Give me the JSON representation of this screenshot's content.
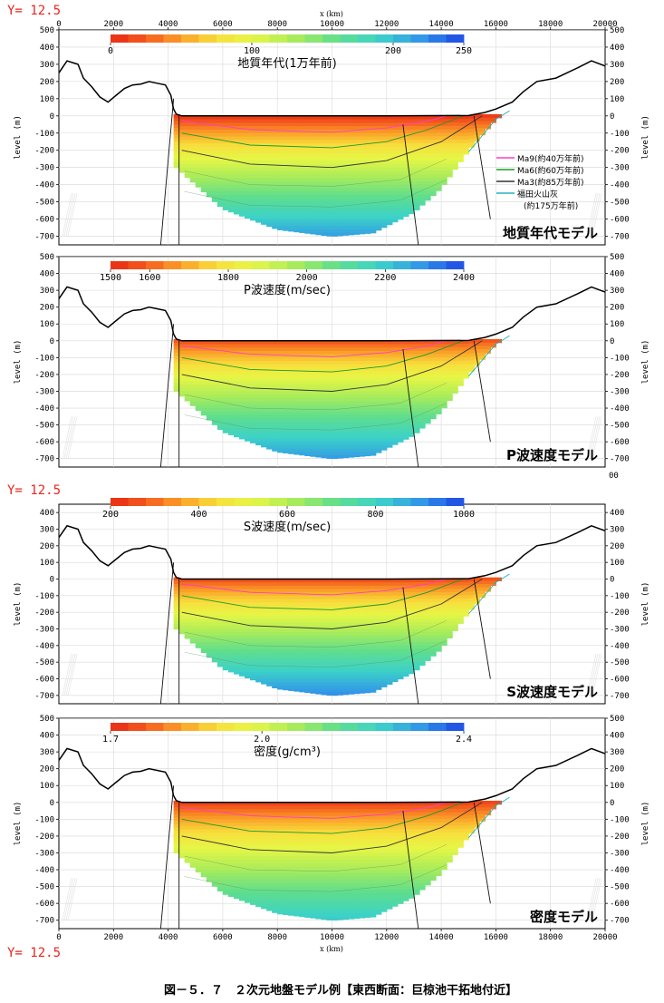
{
  "page": {
    "y_markers": [
      "Y= 12.5",
      "Y= 12.5",
      "Y= 12.5"
    ],
    "x_axis_label": "x (km)",
    "extra_tick": "00",
    "caption": "図－５．７　２次元地盤モデル例【東西断面：巨椋池干拓地付近】"
  },
  "legend": {
    "entries": [
      {
        "name": "Ma9(約40万年前)",
        "color": "#ff3cc8"
      },
      {
        "name": "Ma6(約60万年前)",
        "color": "#1a9a2a"
      },
      {
        "name": "Ma3(約85万年前)",
        "color": "#333333"
      },
      {
        "name": "福田火山灰",
        "color": "#22b0c0"
      },
      {
        "name": "(約175万年前)",
        "color": ""
      }
    ]
  },
  "chart_data": [
    {
      "type": "heatmap",
      "title": "地質年代モデル",
      "colorbar_label": "地質年代(1万年前)",
      "colorbar_ticks": [
        "0",
        "100",
        "200",
        "250"
      ],
      "colorbar_range": [
        0,
        250
      ],
      "ylabel": "level (m)",
      "xlabel": "",
      "xlim": [
        0,
        20000
      ],
      "ylim": [
        -750,
        500
      ],
      "x_ticks": [
        "0",
        "2000",
        "4000",
        "6000",
        "8000",
        "10000",
        "12000",
        "14000",
        "16000",
        "18000",
        "20000"
      ],
      "y_ticks": [
        "500",
        "400",
        "300",
        "200",
        "100",
        "0",
        "-100",
        "-200",
        "-300",
        "-400",
        "-500",
        "-600",
        "-700"
      ],
      "top_value": 0,
      "bottom_value": 230,
      "grid": true
    },
    {
      "type": "heatmap",
      "title": "P波速度モデル",
      "colorbar_label": "P波速度(m/sec)",
      "colorbar_ticks": [
        "1500",
        "1600",
        "1800",
        "2000",
        "2200",
        "2400"
      ],
      "colorbar_range": [
        1500,
        2400
      ],
      "ylabel": "level (m)",
      "xlabel": "",
      "xlim": [
        0,
        20000
      ],
      "ylim": [
        -750,
        500
      ],
      "x_ticks": [],
      "y_ticks": [
        "500",
        "400",
        "300",
        "200",
        "100",
        "0",
        "-100",
        "-200",
        "-300",
        "-400",
        "-500",
        "-600",
        "-700"
      ],
      "top_value": 1550,
      "bottom_value": 2330,
      "grid": true
    },
    {
      "type": "heatmap",
      "title": "S波速度モデル",
      "colorbar_label": "S波速度(m/sec)",
      "colorbar_ticks": [
        "200",
        "400",
        "600",
        "800",
        "1000"
      ],
      "colorbar_range": [
        200,
        1000
      ],
      "ylabel": "level (m)",
      "xlabel": "",
      "xlim": [
        0,
        20000
      ],
      "ylim": [
        -750,
        450
      ],
      "x_ticks": [],
      "y_ticks": [
        "400",
        "300",
        "200",
        "100",
        "0",
        "-100",
        "-200",
        "-300",
        "-400",
        "-500",
        "-600",
        "-700"
      ],
      "top_value": 240,
      "bottom_value": 960,
      "grid": true
    },
    {
      "type": "heatmap",
      "title": "密度モデル",
      "colorbar_label": "密度(g/cm³)",
      "colorbar_ticks": [
        "1.7",
        "2.0",
        "2.4"
      ],
      "colorbar_range": [
        1.7,
        2.4
      ],
      "ylabel": "level (m)",
      "xlabel": "x (km)",
      "xlim": [
        0,
        20000
      ],
      "ylim": [
        -750,
        500
      ],
      "x_ticks": [
        "0",
        "2000",
        "4000",
        "6000",
        "8000",
        "10000",
        "12000",
        "14000",
        "16000",
        "18000",
        "20000"
      ],
      "y_ticks": [
        "500",
        "400",
        "300",
        "200",
        "100",
        "0",
        "-100",
        "-200",
        "-300",
        "-400",
        "-500",
        "-600",
        "-700"
      ],
      "top_value": 1.72,
      "bottom_value": 2.28,
      "grid": true
    }
  ],
  "shared_profile": {
    "surface": [
      [
        0,
        250
      ],
      [
        300,
        320
      ],
      [
        700,
        300
      ],
      [
        900,
        220
      ],
      [
        1200,
        170
      ],
      [
        1500,
        110
      ],
      [
        1800,
        80
      ],
      [
        2100,
        120
      ],
      [
        2400,
        160
      ],
      [
        2700,
        180
      ],
      [
        3000,
        185
      ],
      [
        3300,
        200
      ],
      [
        3600,
        190
      ],
      [
        3900,
        180
      ],
      [
        4100,
        120
      ],
      [
        4200,
        40
      ],
      [
        4300,
        10
      ],
      [
        4500,
        0
      ],
      [
        8000,
        0
      ],
      [
        12000,
        0
      ],
      [
        15000,
        2
      ],
      [
        15600,
        20
      ],
      [
        16000,
        40
      ],
      [
        16600,
        80
      ],
      [
        17000,
        140
      ],
      [
        17500,
        200
      ],
      [
        18200,
        220
      ],
      [
        19000,
        280
      ],
      [
        19500,
        320
      ],
      [
        20000,
        290
      ]
    ],
    "basin_bottom": [
      [
        4300,
        -300
      ],
      [
        6000,
        -540
      ],
      [
        8000,
        -660
      ],
      [
        10000,
        -700
      ],
      [
        11500,
        -680
      ],
      [
        13000,
        -560
      ],
      [
        14000,
        -420
      ],
      [
        15000,
        -200
      ],
      [
        16000,
        -20
      ],
      [
        16500,
        30
      ]
    ],
    "horizons": [
      {
        "name": "Ma9",
        "points": [
          [
            4500,
            -30
          ],
          [
            7000,
            -80
          ],
          [
            10000,
            -95
          ],
          [
            12000,
            -70
          ],
          [
            13500,
            -30
          ],
          [
            14200,
            0
          ]
        ]
      },
      {
        "name": "Ma6",
        "points": [
          [
            4500,
            -100
          ],
          [
            7000,
            -170
          ],
          [
            10000,
            -185
          ],
          [
            12000,
            -150
          ],
          [
            13500,
            -80
          ],
          [
            14800,
            0
          ]
        ]
      },
      {
        "name": "Ma3",
        "points": [
          [
            4500,
            -200
          ],
          [
            7000,
            -280
          ],
          [
            10000,
            -300
          ],
          [
            12000,
            -260
          ],
          [
            14000,
            -150
          ],
          [
            15500,
            0
          ]
        ]
      },
      {
        "name": "福田火山灰",
        "points": [
          [
            15000,
            -210
          ],
          [
            16000,
            -20
          ],
          [
            16500,
            30
          ]
        ]
      }
    ],
    "faults": [
      [
        [
          4200,
          100
        ],
        [
          3700,
          -800
        ]
      ],
      [
        [
          4400,
          0
        ],
        [
          4400,
          -800
        ]
      ],
      [
        [
          12600,
          -50
        ],
        [
          13200,
          -800
        ]
      ],
      [
        [
          15200,
          0
        ],
        [
          15800,
          -600
        ]
      ]
    ]
  }
}
